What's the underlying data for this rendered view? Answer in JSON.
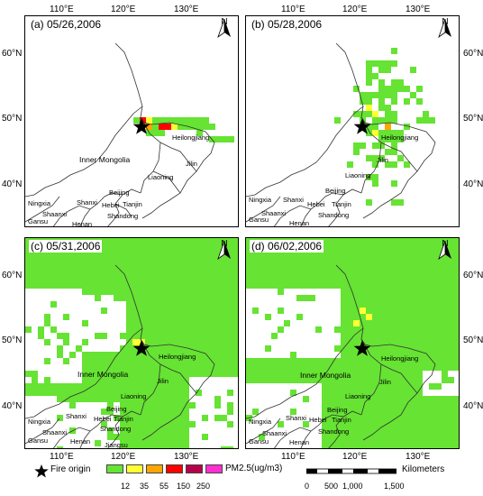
{
  "lat_ticks": [
    "60°N",
    "50°N",
    "40°N"
  ],
  "lon_ticks": [
    "110°E",
    "120°E",
    "130°E"
  ],
  "north_label": "N",
  "labels": {
    "heilongjiang": "Heilongjiang",
    "inner_mongolia": "Inner Mongolia",
    "jilin": "Jilin",
    "liaoning": "Liaoning",
    "beijing": "Beijing",
    "hebei": "Hebei",
    "tianjin": "Tianjin",
    "shanxi": "Shanxi",
    "shandong": "Shandong",
    "ningxia": "Ningxia",
    "shaanxi": "Shaanxi",
    "gansu": "Gansu",
    "henan": "Henan",
    "jiangsu": "Jiangsu"
  },
  "panels": [
    {
      "title": "(a) 05/26,2006"
    },
    {
      "title": "(b) 05/28,2006"
    },
    {
      "title": "(c) 05/31,2006"
    },
    {
      "title": "(d) 06/02,2006"
    }
  ],
  "legend": {
    "fire_origin": "Fire origin",
    "pm_label": "PM2.5(ug/m3)",
    "classes": [
      {
        "color": "#66e333",
        "value": "12"
      },
      {
        "color": "#ffff33",
        "value": "35"
      },
      {
        "color": "#ffa500",
        "value": "55"
      },
      {
        "color": "#ff0000",
        "value": "150"
      },
      {
        "color": "#b8004a",
        "value": "250"
      },
      {
        "color": "#ff2fd0",
        "value": ""
      }
    ]
  },
  "scale_bar": {
    "unit": "Kilometers",
    "ticks": [
      "0",
      "500",
      "1,000",
      "1,500"
    ]
  }
}
